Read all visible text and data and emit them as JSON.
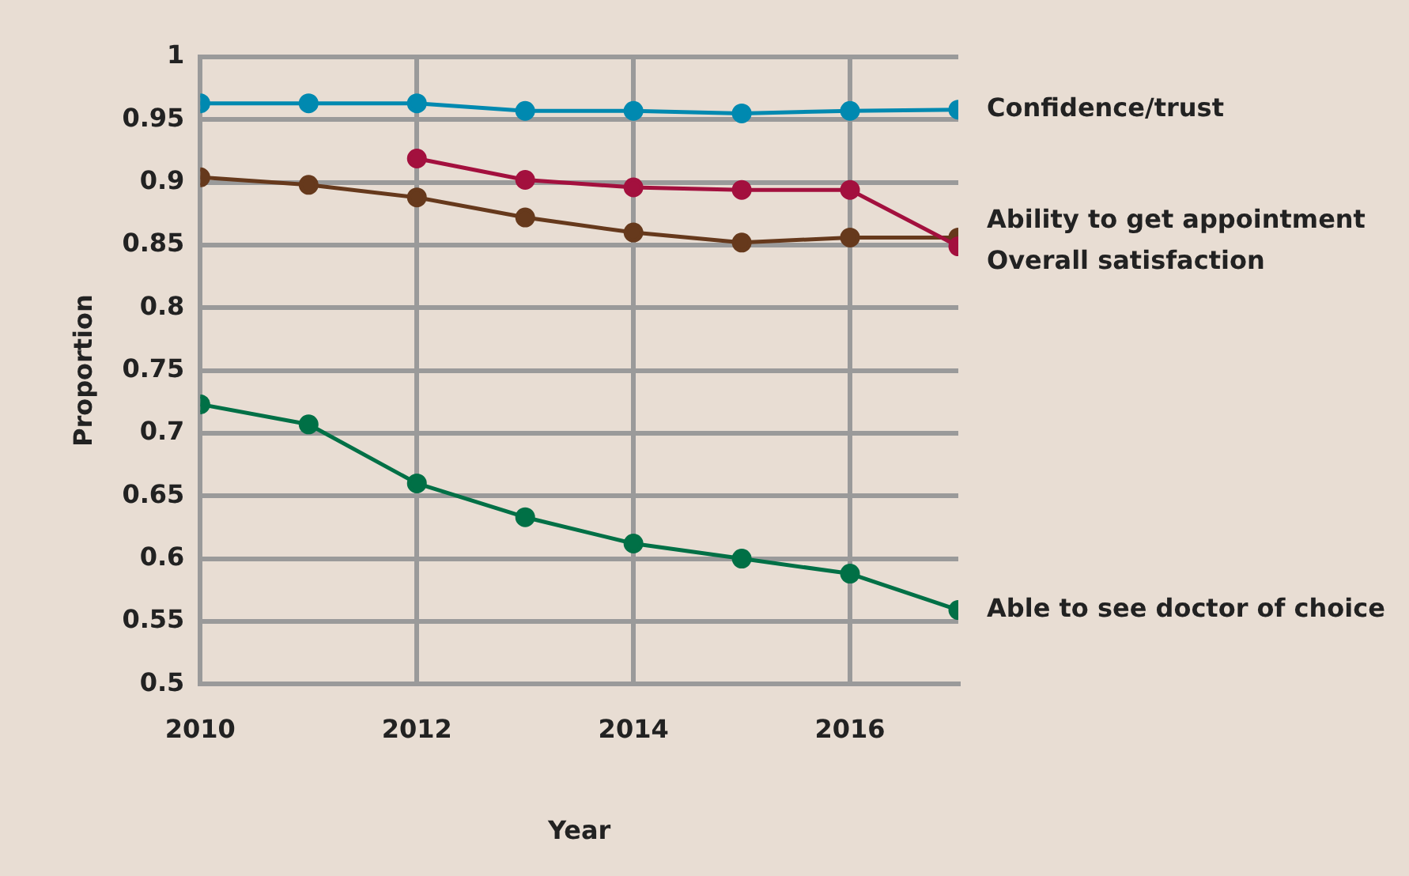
{
  "chart_data": {
    "type": "line",
    "xlabel": "Year",
    "ylabel": "Proportion",
    "x": [
      2010,
      2011,
      2012,
      2013,
      2014,
      2015,
      2016,
      2017
    ],
    "xlim": [
      2010,
      2017
    ],
    "xticks": [
      2010,
      2012,
      2014,
      2016
    ],
    "ylim": [
      0.5,
      1
    ],
    "yticks": [
      0.5,
      0.55,
      0.6,
      0.65,
      0.7,
      0.75,
      0.8,
      0.85,
      0.9,
      0.95,
      1
    ],
    "grid": true,
    "legend": false,
    "marker": "circle",
    "line_style": "solid",
    "series": [
      {
        "name": "Confidence/trust",
        "color": "#0089b0",
        "values": [
          0.963,
          0.963,
          0.963,
          0.957,
          0.957,
          0.955,
          0.957,
          0.958
        ]
      },
      {
        "name": "Ability to get appointment",
        "color": "#a3103e",
        "values": [
          null,
          null,
          0.919,
          0.902,
          0.896,
          0.894,
          0.894,
          0.849
        ]
      },
      {
        "name": "Overall satisfaction",
        "color": "#66391c",
        "values": [
          0.904,
          0.898,
          0.888,
          0.872,
          0.86,
          0.852,
          0.856,
          0.856
        ]
      },
      {
        "name": "Able to see doctor of choice",
        "color": "#007046",
        "values": [
          0.723,
          0.707,
          0.66,
          0.633,
          0.612,
          0.6,
          0.588,
          0.559
        ]
      }
    ]
  }
}
